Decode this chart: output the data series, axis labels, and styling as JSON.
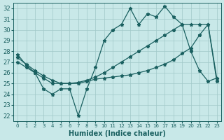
{
  "title": "",
  "xlabel": "Humidex (Indice chaleur)",
  "ylabel": "",
  "xlim": [
    -0.5,
    23.5
  ],
  "ylim": [
    21.5,
    32.5
  ],
  "yticks": [
    22,
    23,
    24,
    25,
    26,
    27,
    28,
    29,
    30,
    31,
    32
  ],
  "xticks": [
    0,
    1,
    2,
    3,
    4,
    5,
    6,
    7,
    8,
    9,
    10,
    11,
    12,
    13,
    14,
    15,
    16,
    17,
    18,
    19,
    20,
    21,
    22,
    23
  ],
  "background_color": "#c8e8e8",
  "grid_color": "#a0c8c8",
  "line_color": "#1a6060",
  "line1_x": [
    0,
    1,
    2,
    3,
    4,
    5,
    6,
    7,
    8,
    9,
    10,
    11,
    12,
    13,
    14,
    15,
    16,
    17,
    18,
    19,
    20,
    21,
    22,
    23
  ],
  "line1_y": [
    27.7,
    26.7,
    26.0,
    24.5,
    24.0,
    24.5,
    24.5,
    22.0,
    24.5,
    26.5,
    29.0,
    30.0,
    30.5,
    32.0,
    30.5,
    31.5,
    31.2,
    32.2,
    31.2,
    30.5,
    28.0,
    26.2,
    25.2,
    25.5
  ],
  "line2_x": [
    0,
    1,
    2,
    3,
    4,
    5,
    6,
    7,
    8,
    9,
    10,
    11,
    12,
    13,
    14,
    15,
    16,
    17,
    18,
    19,
    20,
    21,
    22,
    23
  ],
  "line2_y": [
    27.0,
    26.5,
    26.0,
    25.5,
    25.0,
    25.0,
    25.0,
    25.0,
    25.2,
    25.4,
    25.5,
    25.6,
    25.7,
    25.8,
    26.0,
    26.2,
    26.5,
    26.8,
    27.2,
    27.8,
    28.3,
    29.5,
    30.5,
    25.2
  ],
  "line3_x": [
    0,
    1,
    2,
    3,
    4,
    5,
    6,
    7,
    8,
    9,
    10,
    11,
    12,
    13,
    14,
    15,
    16,
    17,
    18,
    19,
    20,
    21,
    22,
    23
  ],
  "line3_y": [
    27.4,
    26.8,
    26.2,
    25.7,
    25.3,
    25.0,
    25.0,
    25.1,
    25.3,
    25.6,
    26.0,
    26.5,
    27.0,
    27.5,
    28.0,
    28.5,
    29.0,
    29.5,
    30.0,
    30.5,
    30.5,
    30.5,
    30.5,
    25.5
  ],
  "tick_fontsize": 6,
  "label_fontsize": 7
}
